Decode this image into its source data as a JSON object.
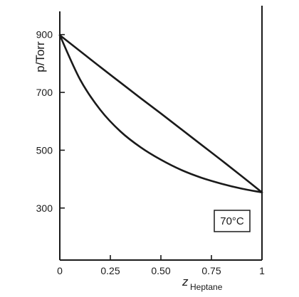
{
  "chart_data": {
    "type": "line",
    "title": "",
    "xlabel": "z",
    "xlabel_subscript": "Heptane",
    "ylabel": "p/Torr",
    "xlim": [
      0,
      1
    ],
    "ylim": [
      120,
      1000
    ],
    "x_ticks": [
      0,
      0.25,
      0.5,
      0.75,
      1
    ],
    "x_tick_labels": [
      "0",
      "0.25",
      "0.50",
      "0.75",
      "1"
    ],
    "y_ticks": [
      300,
      500,
      700,
      900
    ],
    "y_tick_labels": [
      "300",
      "500",
      "700",
      "900"
    ],
    "grid": false,
    "annotation": "70°C",
    "annotation_position": "bottom-right",
    "series": [
      {
        "x": [
          0,
          0.1,
          0.2,
          0.3,
          0.4,
          0.5,
          0.6,
          0.7,
          0.8,
          0.9,
          1
        ],
        "values": [
          898,
          843,
          788,
          734,
          680,
          627,
          573,
          519,
          465,
          410,
          354
        ]
      },
      {
        "x": [
          0,
          0.1,
          0.2,
          0.3,
          0.4,
          0.5,
          0.6,
          0.7,
          0.8,
          0.9,
          1
        ],
        "values": [
          898,
          745,
          640,
          565,
          510,
          467,
          432,
          405,
          384,
          367,
          354
        ]
      }
    ]
  }
}
